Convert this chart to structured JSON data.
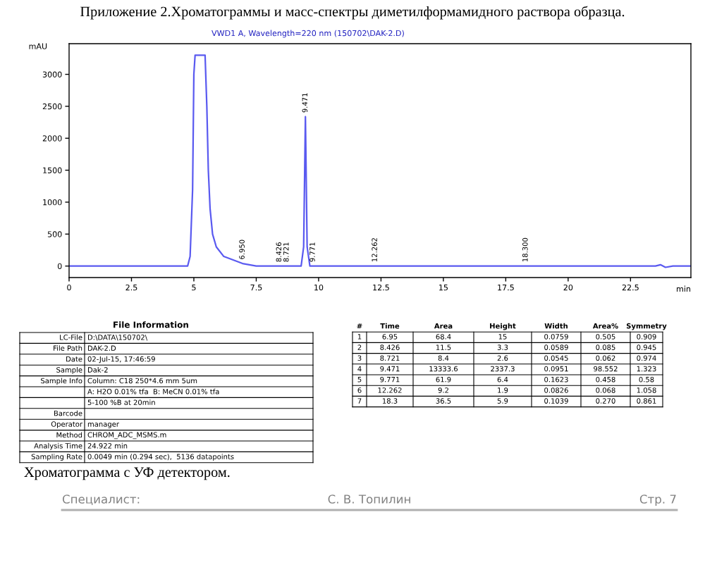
{
  "chart_data": {
    "type": "line",
    "title": "Приложение 2.Хроматограммы и масс-спектры диметилформамидного раствора образца.",
    "subtitle": "VWD1 A, Wavelength=220 nm (150702\\DAK-2.D)",
    "xlabel": "min",
    "ylabel": "mAU",
    "color": "#5a5af0",
    "x": [
      0,
      4.5,
      4.75,
      4.85,
      4.95,
      5.0,
      5.05,
      5.45,
      5.52,
      5.58,
      5.65,
      5.75,
      5.9,
      6.2,
      6.95,
      7.5,
      8.426,
      8.721,
      9.3,
      9.4,
      9.471,
      9.54,
      9.65,
      9.771,
      10.5,
      12.262,
      18.3,
      23.5,
      23.7,
      23.9,
      24.2,
      24.92
    ],
    "values": [
      0,
      0,
      0,
      150,
      1200,
      3000,
      3300,
      3300,
      2500,
      1500,
      900,
      500,
      300,
      150,
      40,
      0,
      0,
      0,
      0,
      300,
      2337,
      300,
      0,
      0,
      0,
      0,
      0,
      0,
      20,
      -20,
      0,
      0
    ],
    "xlim": [
      0,
      24.92
    ],
    "ylim": [
      -180,
      3480
    ],
    "xticks": [
      0,
      2.5,
      5,
      7.5,
      10,
      12.5,
      15,
      17.5,
      20,
      22.5
    ],
    "yticks": [
      0,
      500,
      1000,
      1500,
      2000,
      2500,
      3000
    ],
    "annotations": [
      {
        "text": "6.950",
        "x": 6.95,
        "y": 40
      },
      {
        "text": "8.426",
        "x": 8.426,
        "y": 0
      },
      {
        "text": "8.721",
        "x": 8.721,
        "y": 0
      },
      {
        "text": "9.471",
        "x": 9.471,
        "y": 2337
      },
      {
        "text": "9.771",
        "x": 9.771,
        "y": 0
      },
      {
        "text": "12.262",
        "x": 12.262,
        "y": 0
      },
      {
        "text": "18.300",
        "x": 18.3,
        "y": 0
      },
      "File Information",
      "LC-File",
      "D:\\DATA\\150702\\",
      "File Path",
      "DAK-2.D",
      "Date",
      "02-Jul-15, 17:46:59",
      "Sample",
      "Dak-2",
      "Sample Info",
      "Column: C18 250*4.6 mm 5um",
      "A: H2O 0.01% tfa  B: MeCN 0.01% tfa",
      "5-100 %B at 20min",
      "Barcode",
      "Operator",
      "manager",
      "Method",
      "CHROM_ADC_MSMS.m",
      "Analysis Time",
      "24.922 min",
      "Sampling Rate",
      "0.0049 min (0.294 sec),  5136 datapoints",
      "#",
      "Time",
      "Area",
      "Height",
      "Width",
      "Area%",
      "Symmetry",
      "1",
      "6.95",
      "68.4",
      "15",
      "0.0759",
      "0.505",
      "0.909",
      "2",
      "8.426",
      "11.5",
      "3.3",
      "0.0589",
      "0.085",
      "0.945",
      "3",
      "8.721",
      "8.4",
      "2.6",
      "0.0545",
      "0.062",
      "0.974",
      "4",
      "9.471",
      "13333.6",
      "2337.3",
      "0.0951",
      "98.552",
      "1.323",
      "5",
      "9.771",
      "61.9",
      "6.4",
      "0.1623",
      "0.458",
      "0.58",
      "6",
      "12.262",
      "9.2",
      "1.9",
      "0.0826",
      "0.068",
      "1.058",
      "7",
      "18.3",
      "36.5",
      "5.9",
      "0.1039",
      "0.270",
      "0.861",
      "Хроматограмма с УФ детектором.",
      "Специалист:",
      "С. В. Топилин",
      "Стр. 7"
    ]
  }
}
